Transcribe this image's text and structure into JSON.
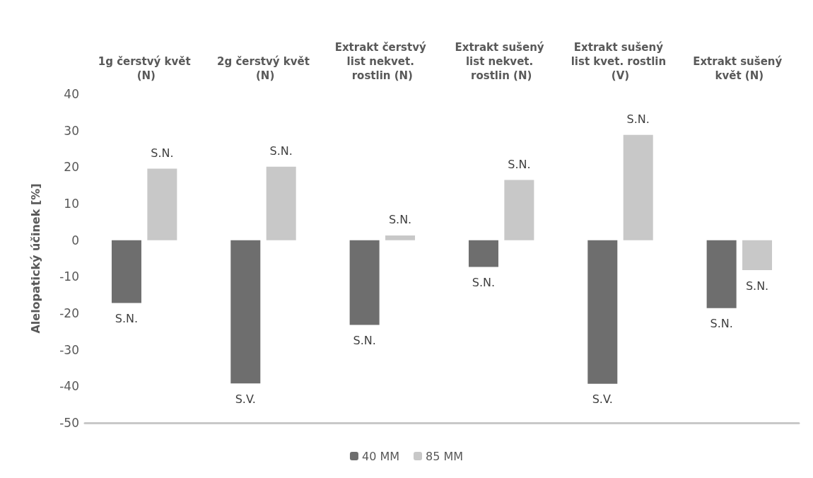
{
  "chart_data": {
    "type": "bar",
    "ylabel": "Alelopatický účinek [%]",
    "categories": [
      "1g čerstvý květ (N)",
      "2g čerstvý květ (N)",
      "Extrakt čerstvý list nekvet. rostlin (N)",
      "Extrakt sušený list nekvet. rostlin (N)",
      "Extrakt sušený list kvet. rostlin (V)",
      "Extrakt sušený květ (N)"
    ],
    "series": [
      {
        "name": "40 MM",
        "color": "#6e6e6e",
        "values": [
          -17.2,
          -39.2,
          -23.2,
          -7.3,
          -39.3,
          -18.6
        ],
        "value_labels": [
          "S.N.",
          "S.V.",
          "S.N.",
          "S.N.",
          "S.V.",
          "S.N."
        ]
      },
      {
        "name": "85 MM",
        "color": "#c8c8c8",
        "values": [
          19.6,
          20.1,
          1.3,
          16.5,
          28.8,
          -8.2
        ],
        "value_labels": [
          "S.N.",
          "S.N.",
          "S.N.",
          "S.N.",
          "S.N.",
          "S.N."
        ]
      }
    ],
    "ylim": [
      -50,
      40
    ],
    "yticks": [
      -50,
      -40,
      -30,
      -20,
      -10,
      0,
      10,
      20,
      30,
      40
    ],
    "grid": false,
    "legend": "bottom"
  }
}
